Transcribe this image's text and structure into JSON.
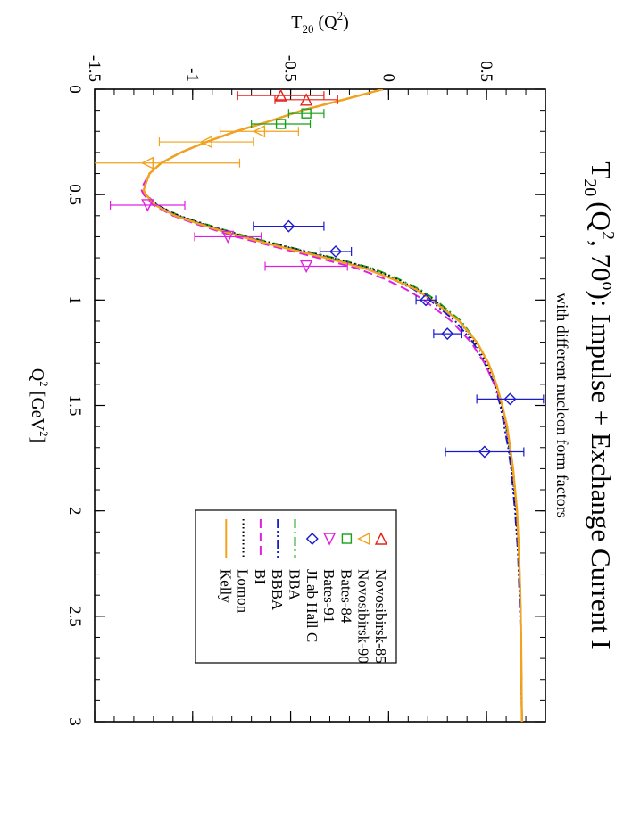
{
  "chart_data": {
    "type": "scatter",
    "title": "T20 (Q2, 70o): Impulse + Exchange Current I",
    "title_parts": {
      "t": "T",
      "t_sub": "20",
      "q_open": "(Q",
      "q_sup": "2",
      "angle": ", 70",
      "deg": "o",
      "rest": "): Impulse + Exchange Current I"
    },
    "subtitle": "with different nucleon form factors",
    "xlabel": "Q2 [GeV2]",
    "xlabel_parts": {
      "q": "Q",
      "sup1": "2",
      "mid": " [GeV",
      "sup2": "2",
      "end": "]"
    },
    "ylabel": "T20 (Q2)",
    "ylabel_parts": {
      "t": "T",
      "sub": "20",
      "mid": " (Q",
      "sup": "2",
      "end": ")"
    },
    "xlim": [
      0,
      3
    ],
    "ylim": [
      -1.5,
      0.8
    ],
    "xticks": [
      0,
      0.5,
      1,
      1.5,
      2,
      2.5,
      3
    ],
    "xtick_labels": [
      "0",
      "0.5",
      "1",
      "1.5",
      "2",
      "2.5",
      "3"
    ],
    "yticks": [
      -1.5,
      -1,
      -0.5,
      0,
      0.5
    ],
    "ytick_labels": [
      "-1.5",
      "-1",
      "-0.5",
      "0",
      "0.5"
    ],
    "grid": false,
    "legend_placement": "upper-right (rotated view)",
    "data_series": [
      {
        "name": "Novosibirsk-85",
        "marker": "triangle-left",
        "color": "#e8201a",
        "points": [
          {
            "x": 0.05,
            "y": -0.42,
            "err": 0.16
          },
          {
            "x": 0.03,
            "y": -0.55,
            "err": 0.22
          }
        ]
      },
      {
        "name": "Novosibirsk-90",
        "marker": "triangle-down",
        "color": "#f2a21d",
        "points": [
          {
            "x": 0.2,
            "y": -0.66,
            "err": 0.2
          },
          {
            "x": 0.25,
            "y": -0.93,
            "err": 0.24
          },
          {
            "x": 0.35,
            "y": -1.23,
            "err": 0.47
          }
        ]
      },
      {
        "name": "Bates-84",
        "marker": "square",
        "color": "#18a018",
        "points": [
          {
            "x": 0.115,
            "y": -0.42,
            "err": 0.09
          },
          {
            "x": 0.165,
            "y": -0.55,
            "err": 0.15
          }
        ]
      },
      {
        "name": "Bates-91",
        "marker": "triangle-right",
        "color": "#e020e0",
        "points": [
          {
            "x": 0.55,
            "y": -1.23,
            "err": 0.19
          },
          {
            "x": 0.7,
            "y": -0.82,
            "err": 0.17
          },
          {
            "x": 0.84,
            "y": -0.42,
            "err": 0.21
          }
        ]
      },
      {
        "name": "JLab Hall C",
        "marker": "diamond",
        "color": "#1a1ad0",
        "points": [
          {
            "x": 0.65,
            "y": -0.51,
            "err": 0.18
          },
          {
            "x": 0.77,
            "y": -0.27,
            "err": 0.08
          },
          {
            "x": 1.0,
            "y": 0.19,
            "err": 0.05
          },
          {
            "x": 1.16,
            "y": 0.3,
            "err": 0.07
          },
          {
            "x": 1.47,
            "y": 0.62,
            "err": 0.17
          },
          {
            "x": 1.72,
            "y": 0.49,
            "err": 0.2
          }
        ]
      }
    ],
    "model_series": [
      {
        "name": "BBA",
        "style": "dash-dot",
        "color": "#18a018",
        "x": [
          0,
          0.05,
          0.1,
          0.15,
          0.2,
          0.25,
          0.3,
          0.35,
          0.4,
          0.45,
          0.48,
          0.5,
          0.55,
          0.6,
          0.65,
          0.7,
          0.75,
          0.8,
          0.85,
          0.9,
          0.95,
          1.0,
          1.1,
          1.2,
          1.3,
          1.4,
          1.5,
          1.6,
          1.7,
          1.8,
          1.9,
          2.0,
          2.2,
          2.4,
          2.6,
          2.8,
          3.0
        ],
        "y": [
          -0.03,
          -0.23,
          -0.44,
          -0.6,
          -0.78,
          -0.93,
          -1.06,
          -1.16,
          -1.22,
          -1.24,
          -1.25,
          -1.24,
          -1.18,
          -1.07,
          -0.9,
          -0.72,
          -0.5,
          -0.28,
          -0.08,
          0.05,
          0.16,
          0.24,
          0.37,
          0.45,
          0.51,
          0.55,
          0.58,
          0.6,
          0.62,
          0.635,
          0.645,
          0.655,
          0.665,
          0.672,
          0.676,
          0.678,
          0.68
        ]
      },
      {
        "name": "BBBA",
        "style": "dash-dot-dot",
        "color": "#1a1ad0",
        "x": [
          0,
          0.05,
          0.1,
          0.15,
          0.2,
          0.25,
          0.3,
          0.35,
          0.4,
          0.45,
          0.48,
          0.5,
          0.55,
          0.6,
          0.65,
          0.7,
          0.75,
          0.8,
          0.85,
          0.9,
          0.95,
          1.0,
          1.1,
          1.2,
          1.3,
          1.4,
          1.5,
          1.6,
          1.7,
          1.8,
          1.9,
          2.0,
          2.2,
          2.4,
          2.6,
          2.8,
          3.0
        ],
        "y": [
          -0.03,
          -0.23,
          -0.44,
          -0.6,
          -0.78,
          -0.93,
          -1.06,
          -1.16,
          -1.22,
          -1.24,
          -1.25,
          -1.24,
          -1.18,
          -1.08,
          -0.92,
          -0.74,
          -0.52,
          -0.31,
          -0.11,
          0.02,
          0.13,
          0.21,
          0.34,
          0.43,
          0.49,
          0.54,
          0.57,
          0.59,
          0.61,
          0.625,
          0.635,
          0.645,
          0.66,
          0.668,
          0.674,
          0.677,
          0.68
        ]
      },
      {
        "name": "BI",
        "style": "dashed",
        "color": "#e020e0",
        "x": [
          0,
          0.05,
          0.1,
          0.15,
          0.2,
          0.25,
          0.3,
          0.35,
          0.4,
          0.45,
          0.48,
          0.5,
          0.55,
          0.6,
          0.65,
          0.7,
          0.75,
          0.8,
          0.85,
          0.9,
          0.95,
          1.0,
          1.1,
          1.2,
          1.3,
          1.4,
          1.5,
          1.6,
          1.7,
          1.8,
          1.9,
          2.0,
          2.2,
          2.4,
          2.6,
          2.8,
          3.0
        ],
        "y": [
          -0.03,
          -0.23,
          -0.44,
          -0.6,
          -0.78,
          -0.93,
          -1.06,
          -1.16,
          -1.22,
          -1.25,
          -1.26,
          -1.25,
          -1.2,
          -1.1,
          -0.95,
          -0.78,
          -0.57,
          -0.36,
          -0.16,
          -0.02,
          0.09,
          0.18,
          0.32,
          0.42,
          0.49,
          0.54,
          0.58,
          0.6,
          0.62,
          0.635,
          0.645,
          0.655,
          0.665,
          0.672,
          0.676,
          0.678,
          0.68
        ]
      },
      {
        "name": "Lomon",
        "style": "dotted",
        "color": "#000000",
        "x": [
          0,
          0.05,
          0.1,
          0.15,
          0.2,
          0.25,
          0.3,
          0.35,
          0.4,
          0.45,
          0.48,
          0.5,
          0.55,
          0.6,
          0.65,
          0.7,
          0.75,
          0.8,
          0.85,
          0.9,
          0.95,
          1.0,
          1.1,
          1.2,
          1.3,
          1.4,
          1.5,
          1.6,
          1.7,
          1.8,
          1.9,
          2.0,
          2.2,
          2.4,
          2.6,
          2.8,
          3.0
        ],
        "y": [
          -0.03,
          -0.23,
          -0.44,
          -0.6,
          -0.78,
          -0.93,
          -1.06,
          -1.16,
          -1.22,
          -1.24,
          -1.25,
          -1.24,
          -1.18,
          -1.07,
          -0.91,
          -0.73,
          -0.51,
          -0.29,
          -0.09,
          0.04,
          0.15,
          0.23,
          0.36,
          0.44,
          0.5,
          0.545,
          0.575,
          0.6,
          0.615,
          0.63,
          0.64,
          0.65,
          0.662,
          0.67,
          0.675,
          0.678,
          0.68
        ]
      },
      {
        "name": "Kelly",
        "style": "solid",
        "color": "#f2a21d",
        "x": [
          0,
          0.05,
          0.1,
          0.15,
          0.2,
          0.25,
          0.3,
          0.35,
          0.4,
          0.45,
          0.48,
          0.5,
          0.55,
          0.6,
          0.65,
          0.7,
          0.75,
          0.8,
          0.85,
          0.9,
          0.95,
          1.0,
          1.1,
          1.2,
          1.3,
          1.4,
          1.5,
          1.6,
          1.7,
          1.8,
          1.9,
          2.0,
          2.2,
          2.4,
          2.6,
          2.8,
          3.0
        ],
        "y": [
          -0.03,
          -0.23,
          -0.44,
          -0.6,
          -0.78,
          -0.93,
          -1.06,
          -1.16,
          -1.22,
          -1.24,
          -1.25,
          -1.24,
          -1.19,
          -1.09,
          -0.93,
          -0.75,
          -0.54,
          -0.32,
          -0.12,
          0.02,
          0.14,
          0.22,
          0.36,
          0.45,
          0.51,
          0.55,
          0.58,
          0.605,
          0.62,
          0.635,
          0.645,
          0.655,
          0.665,
          0.672,
          0.676,
          0.678,
          0.68
        ]
      }
    ]
  }
}
